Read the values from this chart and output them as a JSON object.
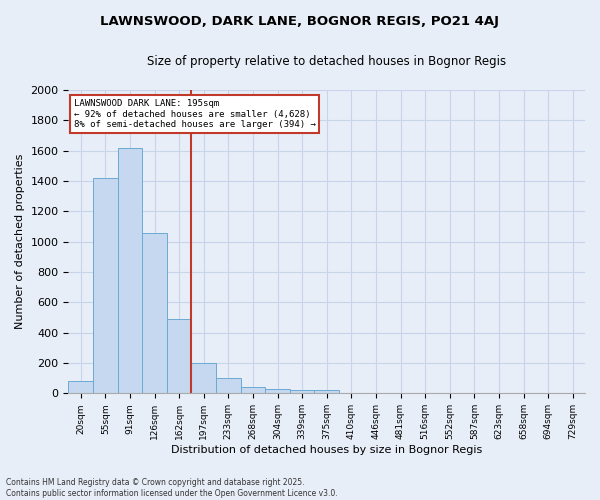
{
  "title": "LAWNSWOOD, DARK LANE, BOGNOR REGIS, PO21 4AJ",
  "subtitle": "Size of property relative to detached houses in Bognor Regis",
  "xlabel": "Distribution of detached houses by size in Bognor Regis",
  "ylabel": "Number of detached properties",
  "bin_labels": [
    "20sqm",
    "55sqm",
    "91sqm",
    "126sqm",
    "162sqm",
    "197sqm",
    "233sqm",
    "268sqm",
    "304sqm",
    "339sqm",
    "375sqm",
    "410sqm",
    "446sqm",
    "481sqm",
    "516sqm",
    "552sqm",
    "587sqm",
    "623sqm",
    "658sqm",
    "694sqm",
    "729sqm"
  ],
  "bar_heights": [
    80,
    1420,
    1620,
    1060,
    490,
    200,
    100,
    40,
    30,
    20,
    20,
    0,
    0,
    0,
    0,
    0,
    0,
    0,
    0,
    0,
    0
  ],
  "bar_color": "#c5d8ef",
  "bar_edge_color": "#6aaad4",
  "grid_color": "#c8d4e8",
  "vline_color": "#c0392b",
  "vline_bin_index": 5,
  "annotation_line1": "LAWNSWOOD DARK LANE: 195sqm",
  "annotation_line2": "← 92% of detached houses are smaller (4,628)",
  "annotation_line3": "8% of semi-detached houses are larger (394) →",
  "annotation_box_color": "#ffffff",
  "annotation_box_edge": "#c0392b",
  "ylim": [
    0,
    2000
  ],
  "yticks": [
    0,
    200,
    400,
    600,
    800,
    1000,
    1200,
    1400,
    1600,
    1800,
    2000
  ],
  "footer_line1": "Contains HM Land Registry data © Crown copyright and database right 2025.",
  "footer_line2": "Contains public sector information licensed under the Open Government Licence v3.0.",
  "bg_color": "#e8eef8"
}
